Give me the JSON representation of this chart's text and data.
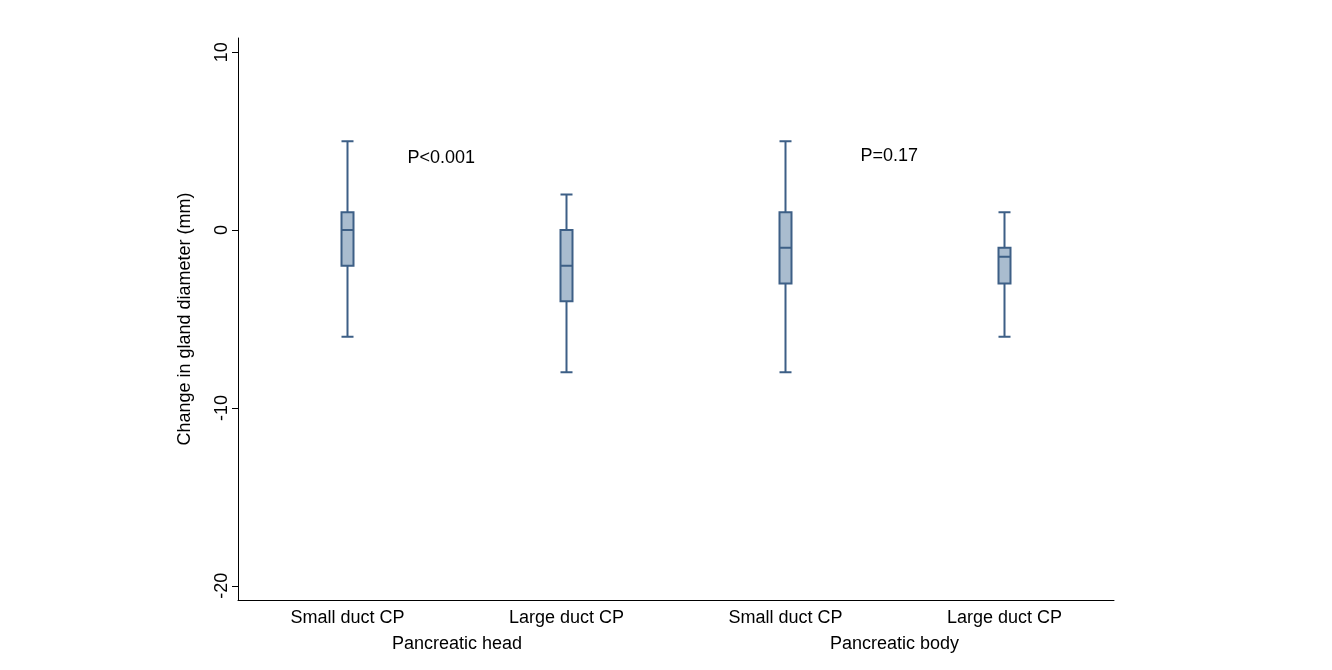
{
  "chart_data": {
    "type": "box",
    "ylabel": "Change in gland diameter (mm)",
    "categories": [
      "Small duct CP",
      "Large duct CP",
      "Small duct CP",
      "Large duct CP"
    ],
    "boxes": [
      {
        "low": -6,
        "q1": -2,
        "median": 0,
        "q3": 1,
        "high": 5
      },
      {
        "low": -8,
        "q1": -4,
        "median": -2,
        "q3": 0,
        "high": 2
      },
      {
        "low": -8,
        "q1": -3,
        "median": -1,
        "q3": 1,
        "high": 5
      },
      {
        "low": -6,
        "q1": -3,
        "median": -1.5,
        "q3": -1,
        "high": 1
      }
    ],
    "color": "#3d5f86",
    "ylim": [
      -20.8,
      10.8
    ],
    "yticks": [
      -20,
      -10,
      0,
      10
    ],
    "grid": false,
    "annotations": [
      "P<0.001",
      "P=0.17",
      "Pancreatic head",
      "Pancreatic body"
    ]
  }
}
